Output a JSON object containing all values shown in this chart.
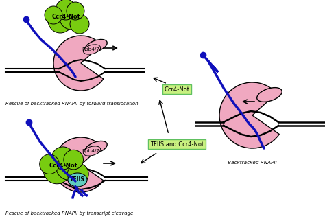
{
  "bg_color": "#ffffff",
  "pink": "#f0a8c0",
  "green": "#78cc10",
  "teal": "#60ccc0",
  "blue": "#1010bb",
  "green_box": "#c8f080",
  "green_box_edge": "#60c060",
  "lbl_top_left": "Rescue of backtracked RNAPII by forward translocation",
  "lbl_bot_left": "Rescue of backtracked RNAPII by transcript cleavage",
  "lbl_right": "Backtracked RNAPII",
  "lbl_ccr4_mid": "Ccr4-Not",
  "lbl_tfiis_ccr4": "TFIIS and Ccr4-Not",
  "lbl_rpb47": "Rpb4/7",
  "lbl_ccr4": "Ccr4-Not",
  "lbl_tfiis": "TFIIS"
}
